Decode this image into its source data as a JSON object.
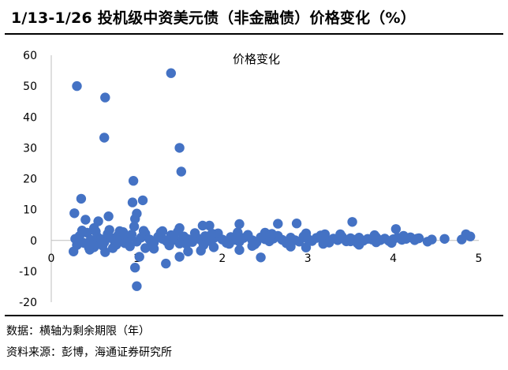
{
  "header": {
    "title": "1/13-1/26 投机级中资美元债（非金融债）价格变化（%）"
  },
  "footer": {
    "note": "数据：横轴为剩余期限（年）",
    "source": "资料来源：彭博，海通证券研究所"
  },
  "chart_data": {
    "type": "scatter",
    "title": "价格变化",
    "xlabel": "",
    "ylabel": "",
    "xlim": [
      0,
      5
    ],
    "ylim": [
      -20,
      60
    ],
    "xticks": [
      0,
      1,
      2,
      3,
      4,
      5
    ],
    "yticks": [
      -20,
      -10,
      0,
      10,
      20,
      30,
      40,
      50,
      60
    ],
    "grid": false,
    "legend": "none",
    "marker_color": "#4472C4",
    "series": [
      {
        "points": [
          [
            0.3,
            50
          ],
          [
            0.63,
            46.3
          ],
          [
            1.4,
            54.2
          ],
          [
            0.62,
            33.3
          ],
          [
            1.5,
            30
          ],
          [
            1.52,
            22.3
          ],
          [
            0.96,
            19.3
          ],
          [
            0.35,
            13.5
          ],
          [
            1.07,
            13
          ],
          [
            0.95,
            12.3
          ],
          [
            0.27,
            8.8
          ],
          [
            0.67,
            7.8
          ],
          [
            1.0,
            8.7
          ],
          [
            0.98,
            7
          ],
          [
            0.4,
            6.7
          ],
          [
            0.55,
            6.2
          ],
          [
            3.52,
            6
          ],
          [
            2.2,
            5.3
          ],
          [
            2.65,
            5.4
          ],
          [
            2.87,
            5.5
          ],
          [
            1.85,
            4.8
          ],
          [
            1.77,
            4.8
          ],
          [
            4.03,
            3.7
          ],
          [
            1.5,
            4
          ],
          [
            0.97,
            4.5
          ],
          [
            0.5,
            4
          ],
          [
            0.8,
            3
          ],
          [
            1.3,
            3
          ],
          [
            2.5,
            2.5
          ],
          [
            3.2,
            2
          ],
          [
            4.85,
            2
          ],
          [
            4.9,
            1.3
          ],
          [
            4.2,
            1
          ],
          [
            4.45,
            0.3
          ],
          [
            4.8,
            0.3
          ],
          [
            4.28,
            0.6
          ],
          [
            0.98,
            -8.8
          ],
          [
            1.0,
            -14.8
          ],
          [
            1.34,
            -7.5
          ],
          [
            1.5,
            -5.3
          ],
          [
            1.03,
            -5.3
          ],
          [
            2.45,
            -5.5
          ],
          [
            0.26,
            -3.6
          ],
          [
            0.63,
            -3.8
          ],
          [
            1.6,
            -3.6
          ],
          [
            1.75,
            -3.3
          ],
          [
            2.2,
            -3.1
          ],
          [
            2.98,
            -2.3
          ],
          [
            0.45,
            -3
          ],
          [
            0.72,
            -2.5
          ],
          [
            1.2,
            -2.7
          ],
          [
            3.5,
            -0.3
          ],
          [
            3.8,
            -0.6
          ],
          [
            4.4,
            -0.4
          ],
          [
            2.8,
            -2
          ],
          [
            1.9,
            -2.2
          ],
          [
            2.35,
            -1.8
          ],
          [
            3.6,
            -1.4
          ],
          [
            0.5,
            -2.2
          ],
          [
            1.1,
            -2.5
          ],
          [
            0.28,
            0.5
          ],
          [
            0.33,
            1.4
          ],
          [
            0.38,
            -0.8
          ],
          [
            0.42,
            2.5
          ],
          [
            0.46,
            0.2
          ],
          [
            0.5,
            -1.2
          ],
          [
            0.54,
            1.1
          ],
          [
            0.58,
            0.4
          ],
          [
            0.62,
            -0.6
          ],
          [
            0.66,
            2.1
          ],
          [
            0.7,
            0.8
          ],
          [
            0.74,
            -0.2
          ],
          [
            0.78,
            1.6
          ],
          [
            0.82,
            0.1
          ],
          [
            0.86,
            -0.9
          ],
          [
            0.9,
            0.6
          ],
          [
            0.94,
            1.9
          ],
          [
            1.0,
            -0.4
          ],
          [
            1.05,
            0.9
          ],
          [
            1.1,
            2.2
          ],
          [
            1.15,
            0.3
          ],
          [
            1.2,
            -0.7
          ],
          [
            1.25,
            1.2
          ],
          [
            1.3,
            0.5
          ],
          [
            1.35,
            -0.3
          ],
          [
            1.4,
            1.7
          ],
          [
            1.45,
            0.2
          ],
          [
            1.5,
            -1
          ],
          [
            1.55,
            1.3
          ],
          [
            1.6,
            0.4
          ],
          [
            1.65,
            -0.5
          ],
          [
            1.7,
            0.9
          ],
          [
            1.75,
            0.1
          ],
          [
            1.8,
            1.4
          ],
          [
            1.85,
            -0.2
          ],
          [
            1.9,
            0.7
          ],
          [
            1.95,
            2.3
          ],
          [
            2.0,
            0.3
          ],
          [
            2.05,
            -0.8
          ],
          [
            2.1,
            1.1
          ],
          [
            2.15,
            0.2
          ],
          [
            2.2,
            -0.4
          ],
          [
            2.25,
            0.8
          ],
          [
            2.3,
            1.8
          ],
          [
            2.35,
            0.1
          ],
          [
            2.4,
            -0.6
          ],
          [
            2.45,
            1.0
          ],
          [
            2.5,
            0.4
          ],
          [
            2.55,
            -0.3
          ],
          [
            2.6,
            0.6
          ],
          [
            2.65,
            1.5
          ],
          [
            2.7,
            0.2
          ],
          [
            2.75,
            -0.9
          ],
          [
            2.8,
            0.9
          ],
          [
            2.85,
            0.1
          ],
          [
            2.9,
            -0.4
          ],
          [
            2.95,
            1.3
          ],
          [
            3.0,
            0.5
          ],
          [
            3.05,
            -0.2
          ],
          [
            3.1,
            0.8
          ],
          [
            3.15,
            1.6
          ],
          [
            3.2,
            0.2
          ],
          [
            3.25,
            -0.7
          ],
          [
            3.3,
            0.6
          ],
          [
            3.35,
            0.1
          ],
          [
            3.4,
            1.2
          ],
          [
            3.45,
            -0.3
          ],
          [
            3.5,
            0.7
          ],
          [
            3.55,
            0.2
          ],
          [
            3.6,
            0.9
          ],
          [
            3.65,
            -0.1
          ],
          [
            3.7,
            0.5
          ],
          [
            3.75,
            0.3
          ],
          [
            3.8,
            1.0
          ],
          [
            3.85,
            0.1
          ],
          [
            3.9,
            0.6
          ],
          [
            3.95,
            -0.2
          ],
          [
            4.0,
            0.4
          ],
          [
            4.05,
            0.9
          ],
          [
            4.1,
            0.2
          ],
          [
            4.15,
            0.5
          ],
          [
            4.25,
            0.1
          ],
          [
            4.3,
            0.7
          ],
          [
            4.6,
            0.5
          ],
          [
            0.3,
            -1.5
          ],
          [
            0.36,
            3.2
          ],
          [
            0.44,
            -2.3
          ],
          [
            0.52,
            2.9
          ],
          [
            0.6,
            -1.7
          ],
          [
            0.68,
            3.4
          ],
          [
            0.76,
            -1.4
          ],
          [
            0.84,
            2.7
          ],
          [
            0.92,
            -1.9
          ],
          [
            1.08,
            3.1
          ],
          [
            1.17,
            -1.3
          ],
          [
            1.28,
            2.6
          ],
          [
            1.38,
            -1.6
          ],
          [
            1.48,
            2.8
          ],
          [
            1.58,
            -1.2
          ],
          [
            1.68,
            2.4
          ],
          [
            1.78,
            -1.5
          ],
          [
            1.88,
            2.2
          ],
          [
            2.08,
            -1.1
          ],
          [
            2.18,
            2.6
          ],
          [
            2.38,
            -1.3
          ],
          [
            2.58,
            2.1
          ],
          [
            2.78,
            -1.0
          ],
          [
            2.98,
            2.3
          ],
          [
            3.18,
            -1.1
          ],
          [
            3.38,
            2.0
          ],
          [
            3.58,
            -0.9
          ],
          [
            3.78,
            1.7
          ],
          [
            3.98,
            -0.8
          ],
          [
            4.12,
            1.5
          ]
        ]
      }
    ]
  }
}
